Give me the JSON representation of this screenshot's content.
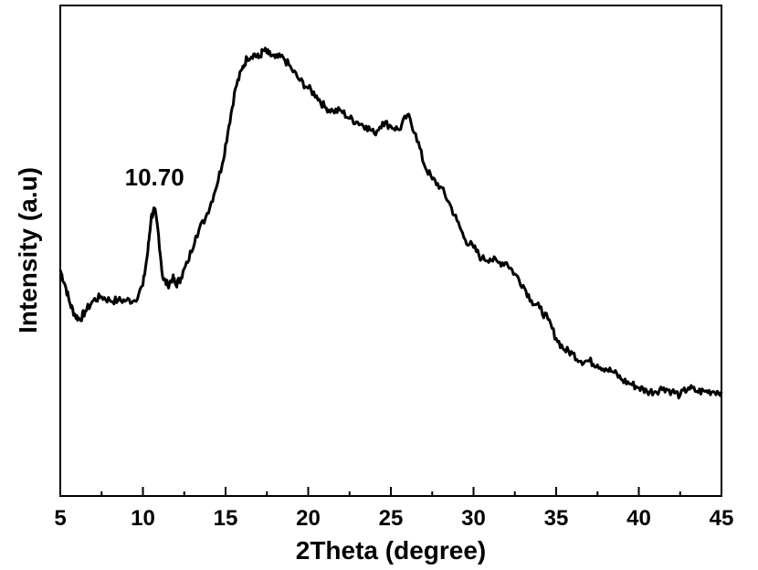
{
  "chart_data": {
    "type": "line",
    "xlabel": "2Theta (degree)",
    "ylabel": "Intensity (a.u)",
    "xlim": [
      5,
      45
    ],
    "ylim": [
      0,
      100
    ],
    "x_ticks": [
      5,
      10,
      15,
      20,
      25,
      30,
      35,
      40,
      45
    ],
    "x_tick_labels": [
      "5",
      "10",
      "15",
      "20",
      "25",
      "30",
      "35",
      "40",
      "45"
    ],
    "y_ticks_shown": false,
    "grid": false,
    "legend": "none",
    "line_color": "#000000",
    "annotations": [
      {
        "text": "10.70",
        "x": 10.7,
        "y": 60
      }
    ],
    "series": [
      {
        "x": [
          5,
          5.3,
          5.6,
          5.9,
          6.2,
          6.5,
          7,
          7.5,
          8,
          8.5,
          9,
          9.5,
          10,
          10.3,
          10.5,
          10.7,
          10.9,
          11.2,
          11.5,
          11.8,
          12,
          12.3,
          12.7,
          13.2,
          13.8,
          14.3,
          14.8,
          15.2,
          15.6,
          16,
          16.3,
          16.7,
          17,
          17.3,
          17.6,
          18,
          18.5,
          19,
          19.5,
          20,
          20.5,
          21,
          21.5,
          22,
          22.5,
          23,
          23.5,
          24,
          24.5,
          25,
          25.5,
          26,
          26.5,
          27,
          27.5,
          28,
          28.5,
          29,
          29.5,
          30,
          30.5,
          31,
          31.5,
          32,
          32.5,
          33,
          33.5,
          34,
          34.5,
          35,
          35.5,
          36,
          36.5,
          37,
          37.5,
          38,
          38.5,
          39,
          39.5,
          40,
          40.5,
          41,
          41.5,
          42,
          42.5,
          43,
          43.5,
          44,
          44.5,
          45
        ],
        "y": [
          42,
          38,
          33,
          30,
          29,
          31,
          34,
          35,
          34,
          34,
          34,
          34,
          38,
          47,
          56,
          58,
          53,
          40,
          38,
          40,
          38,
          40,
          44,
          51,
          56,
          62,
          70,
          80,
          90,
          95,
          98,
          99,
          98,
          100,
          99,
          98,
          98,
          95,
          92,
          90,
          88,
          85,
          84,
          84,
          82,
          81,
          80,
          78,
          81,
          80,
          79,
          83,
          78,
          70,
          66,
          64,
          60,
          55,
          50,
          48,
          45,
          45,
          44,
          44,
          41,
          38,
          34,
          32,
          29,
          24,
          21,
          20,
          18,
          18,
          17,
          16,
          15,
          13,
          12,
          11,
          10,
          10,
          11,
          10,
          9,
          11,
          10,
          10,
          10,
          10
        ]
      }
    ]
  }
}
